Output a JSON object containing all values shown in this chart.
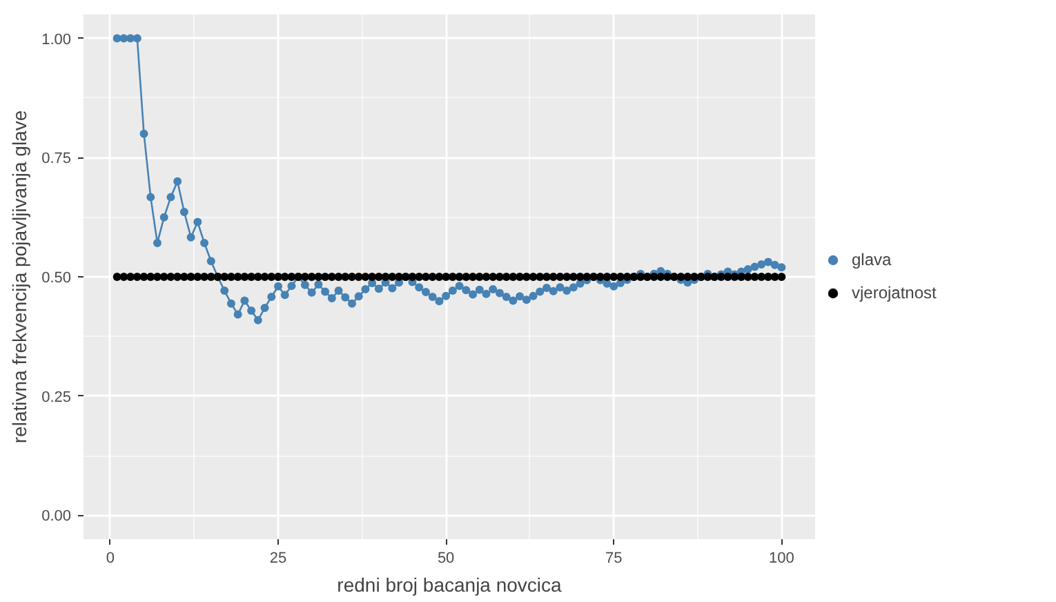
{
  "chart_data": {
    "type": "line",
    "xlabel": "redni broj bacanja novcica",
    "ylabel": "relativna frekvencija pojavljivanja glave",
    "x": [
      1,
      2,
      3,
      4,
      5,
      6,
      7,
      8,
      9,
      10,
      11,
      12,
      13,
      14,
      15,
      16,
      17,
      18,
      19,
      20,
      21,
      22,
      23,
      24,
      25,
      26,
      27,
      28,
      29,
      30,
      31,
      32,
      33,
      34,
      35,
      36,
      37,
      38,
      39,
      40,
      41,
      42,
      43,
      44,
      45,
      46,
      47,
      48,
      49,
      50,
      51,
      52,
      53,
      54,
      55,
      56,
      57,
      58,
      59,
      60,
      61,
      62,
      63,
      64,
      65,
      66,
      67,
      68,
      69,
      70,
      71,
      72,
      73,
      74,
      75,
      76,
      77,
      78,
      79,
      80,
      81,
      82,
      83,
      84,
      85,
      86,
      87,
      88,
      89,
      90,
      91,
      92,
      93,
      94,
      95,
      96,
      97,
      98,
      99,
      100
    ],
    "series": [
      {
        "name": "glava",
        "marker": "circle",
        "color": "#4682b4",
        "values": [
          1,
          1,
          1,
          1,
          0.8,
          0.667,
          0.571,
          0.625,
          0.667,
          0.7,
          0.636,
          0.583,
          0.615,
          0.571,
          0.533,
          0.5,
          0.471,
          0.444,
          0.421,
          0.45,
          0.429,
          0.409,
          0.435,
          0.458,
          0.48,
          0.462,
          0.481,
          0.5,
          0.483,
          0.467,
          0.484,
          0.469,
          0.455,
          0.471,
          0.457,
          0.444,
          0.459,
          0.474,
          0.487,
          0.475,
          0.488,
          0.476,
          0.488,
          0.5,
          0.489,
          0.478,
          0.468,
          0.458,
          0.449,
          0.46,
          0.471,
          0.481,
          0.472,
          0.463,
          0.473,
          0.464,
          0.474,
          0.466,
          0.458,
          0.45,
          0.459,
          0.452,
          0.46,
          0.469,
          0.477,
          0.47,
          0.478,
          0.471,
          0.478,
          0.486,
          0.493,
          0.5,
          0.493,
          0.486,
          0.48,
          0.487,
          0.494,
          0.5,
          0.506,
          0.5,
          0.506,
          0.512,
          0.506,
          0.5,
          0.494,
          0.488,
          0.494,
          0.5,
          0.506,
          0.5,
          0.505,
          0.511,
          0.505,
          0.511,
          0.516,
          0.521,
          0.526,
          0.531,
          0.525,
          0.52
        ]
      },
      {
        "name": "vjerojatnost",
        "type": "scatter",
        "marker": "circle",
        "color": "#000000",
        "values": [
          0.5,
          0.5,
          0.5,
          0.5,
          0.5,
          0.5,
          0.5,
          0.5,
          0.5,
          0.5,
          0.5,
          0.5,
          0.5,
          0.5,
          0.5,
          0.5,
          0.5,
          0.5,
          0.5,
          0.5,
          0.5,
          0.5,
          0.5,
          0.5,
          0.5,
          0.5,
          0.5,
          0.5,
          0.5,
          0.5,
          0.5,
          0.5,
          0.5,
          0.5,
          0.5,
          0.5,
          0.5,
          0.5,
          0.5,
          0.5,
          0.5,
          0.5,
          0.5,
          0.5,
          0.5,
          0.5,
          0.5,
          0.5,
          0.5,
          0.5,
          0.5,
          0.5,
          0.5,
          0.5,
          0.5,
          0.5,
          0.5,
          0.5,
          0.5,
          0.5,
          0.5,
          0.5,
          0.5,
          0.5,
          0.5,
          0.5,
          0.5,
          0.5,
          0.5,
          0.5,
          0.5,
          0.5,
          0.5,
          0.5,
          0.5,
          0.5,
          0.5,
          0.5,
          0.5,
          0.5,
          0.5,
          0.5,
          0.5,
          0.5,
          0.5,
          0.5,
          0.5,
          0.5,
          0.5,
          0.5,
          0.5,
          0.5,
          0.5,
          0.5,
          0.5,
          0.5,
          0.5,
          0.5,
          0.5,
          0.5
        ]
      }
    ],
    "xlim": [
      -4,
      105
    ],
    "xticks": [
      0,
      25,
      50,
      75,
      100
    ],
    "ylim": [
      -0.05,
      1.05
    ],
    "yticks": [
      {
        "value": 0,
        "label": "0.00"
      },
      {
        "value": 0.25,
        "label": "0.25"
      },
      {
        "value": 0.5,
        "label": "0.50"
      },
      {
        "value": 0.75,
        "label": "0.75"
      },
      {
        "value": 1,
        "label": "1.00"
      }
    ],
    "grid": true,
    "legend": "right"
  }
}
